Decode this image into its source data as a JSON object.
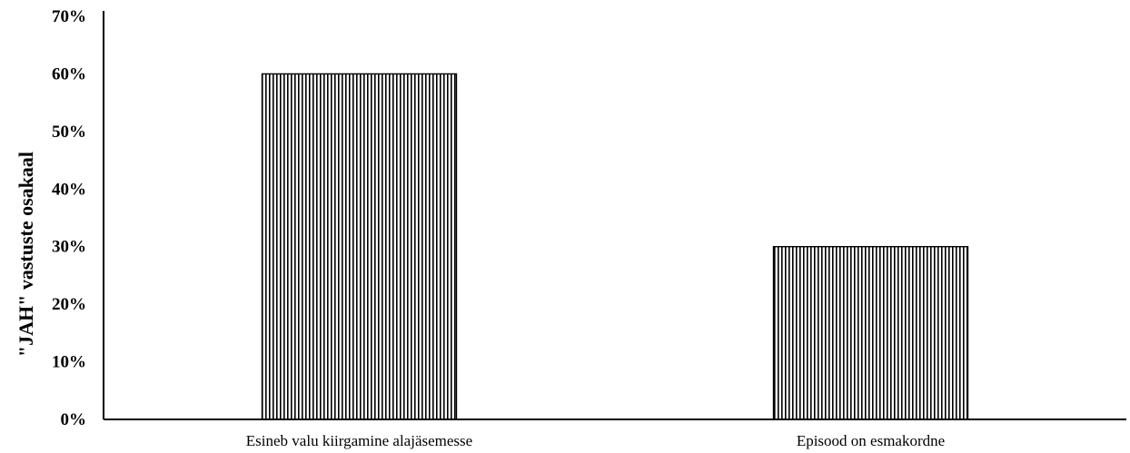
{
  "chart_data": {
    "type": "bar",
    "categories": [
      "Esineb valu kiirgamine alajäsemesse",
      "Episood on esmakordne"
    ],
    "values": [
      60,
      30
    ],
    "ylabel": "\"JAH\" vastuste osakaal",
    "xlabel": "",
    "ylim": [
      0,
      70
    ],
    "yticks": [
      0,
      10,
      20,
      30,
      40,
      50,
      60,
      70
    ],
    "ytick_suffix": "%",
    "grid": false,
    "legend": "none",
    "bar_style": "vertical-hatch",
    "colors": {
      "bar_fill": "#ffffff",
      "bar_hatch": "#000000",
      "axis": "#000000"
    }
  }
}
